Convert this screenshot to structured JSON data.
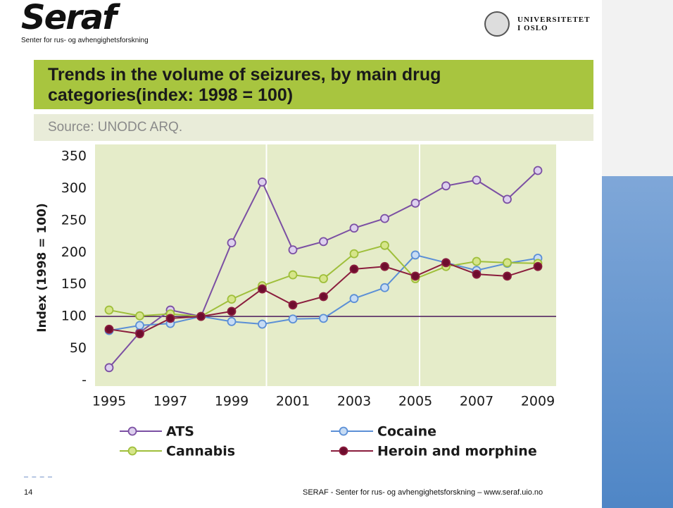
{
  "header": {
    "logo": "Seraf",
    "logo_subtitle": "Senter for rus- og avhengighetsforskning",
    "university": [
      "UNIVERSITETET",
      "I OSLO"
    ]
  },
  "chart_data": {
    "type": "line",
    "title": "Trends in the volume of seizures, by main drug categories(index: 1998 = 100)",
    "subtitle": "Source: UNODC ARQ.",
    "ylabel": "Index (1998 = 100)",
    "x": [
      1995,
      1996,
      1997,
      1998,
      1999,
      2000,
      2001,
      2002,
      2003,
      2004,
      2005,
      2006,
      2007,
      2008,
      2009
    ],
    "xlim": [
      1995,
      2009
    ],
    "xticks": [
      1995,
      1997,
      1999,
      2001,
      2003,
      2005,
      2007,
      2009
    ],
    "ylim": [
      0,
      350
    ],
    "yticks": [
      {
        "value": 0,
        "label": "-"
      },
      50,
      100,
      150,
      200,
      250,
      300,
      350
    ],
    "reference_line": 100,
    "series": [
      {
        "name": "ATS",
        "color": "#7b4fa3",
        "marker_fill": "#ddd0ee",
        "values": [
          20,
          75,
          110,
          100,
          215,
          310,
          204,
          217,
          238,
          253,
          277,
          304,
          313,
          283,
          328
        ]
      },
      {
        "name": "Cocaine",
        "color": "#5b8fd6",
        "marker_fill": "#c7dcf4",
        "values": [
          78,
          86,
          89,
          100,
          92,
          88,
          96,
          97,
          128,
          145,
          196,
          184,
          172,
          183,
          191
        ]
      },
      {
        "name": "Cannabis",
        "color": "#9fbf3b",
        "marker_fill": "#d6e58a",
        "values": [
          110,
          101,
          104,
          100,
          127,
          148,
          165,
          159,
          198,
          211,
          159,
          178,
          186,
          184,
          183
        ]
      },
      {
        "name": "Heroin and morphine",
        "color": "#8a1d3d",
        "marker_fill": "#6e0d2e",
        "values": [
          80,
          73,
          97,
          100,
          108,
          143,
          118,
          131,
          174,
          178,
          163,
          184,
          166,
          163,
          178
        ]
      }
    ]
  },
  "footer": {
    "page": "14",
    "text": "SERAF - Senter for rus- og avhengighetsforskning – www.seraf.uio.no"
  }
}
